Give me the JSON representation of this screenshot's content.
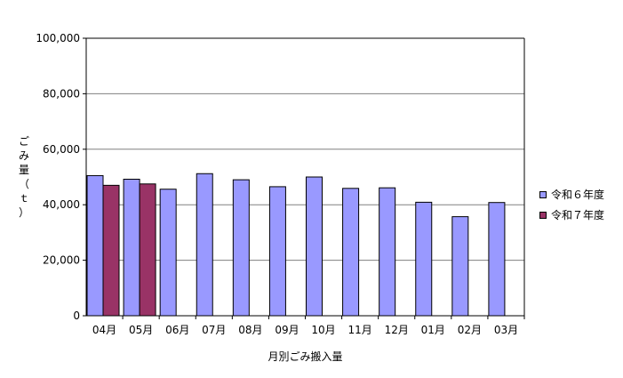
{
  "chart_data": {
    "type": "bar",
    "xlabel": "月別ごみ搬入量",
    "ylabel": "ごみ量（ｔ）",
    "ylim": [
      0,
      100000
    ],
    "yticks": [
      "0",
      "20,000",
      "40,000",
      "60,000",
      "80,000",
      "100,000"
    ],
    "grid": true,
    "legend_position": "right",
    "categories": [
      "04月",
      "05月",
      "06月",
      "07月",
      "08月",
      "09月",
      "10月",
      "11月",
      "12月",
      "01月",
      "02月",
      "03月"
    ],
    "series": [
      {
        "name": "令和６年度",
        "color": "#9999ff",
        "values": [
          50500,
          49200,
          45600,
          51200,
          49000,
          46500,
          50000,
          45900,
          46100,
          40900,
          35700,
          40800
        ]
      },
      {
        "name": "令和７年度",
        "color": "#993366",
        "values": [
          47000,
          47500,
          null,
          null,
          null,
          null,
          null,
          null,
          null,
          null,
          null,
          null
        ]
      }
    ]
  }
}
